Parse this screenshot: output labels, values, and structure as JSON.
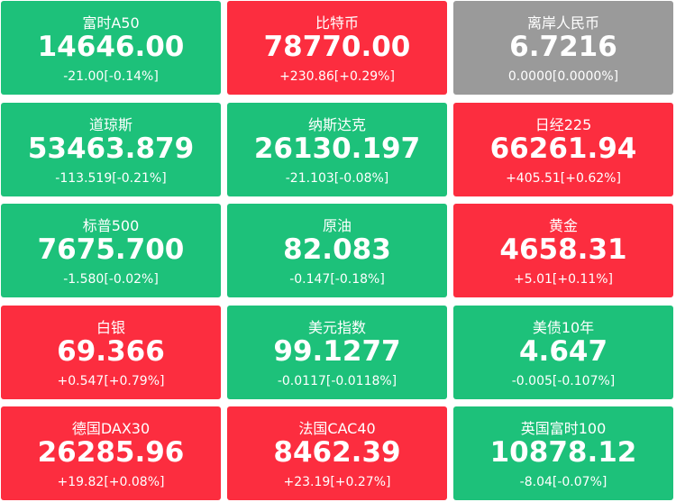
{
  "tiles": [
    {
      "name": "富时A50",
      "value": "14646.00",
      "change": "-21.00[-0.14%]",
      "color": "#1dc17a"
    },
    {
      "name": "比特币",
      "value": "78770.00",
      "change": "+230.86[+0.29%]",
      "color": "#fc2d3f"
    },
    {
      "name": "离岸人民币",
      "value": "6.7216",
      "change": "0.0000[0.0000%]",
      "color": "#9a9a9a"
    },
    {
      "name": "道琼斯",
      "value": "53463.879",
      "change": "-113.519[-0.21%]",
      "color": "#1dc17a"
    },
    {
      "name": "纳斯达克",
      "value": "26130.197",
      "change": "-21.103[-0.08%]",
      "color": "#1dc17a"
    },
    {
      "name": "日经225",
      "value": "66261.94",
      "change": "+405.51[+0.62%]",
      "color": "#fc2d3f"
    },
    {
      "name": "标普500",
      "value": "7675.700",
      "change": "-1.580[-0.02%]",
      "color": "#1dc17a"
    },
    {
      "name": "原油",
      "value": "82.083",
      "change": "-0.147[-0.18%]",
      "color": "#1dc17a"
    },
    {
      "name": "黄金",
      "value": "4658.31",
      "change": "+5.01[+0.11%]",
      "color": "#fc2d3f"
    },
    {
      "name": "白银",
      "value": "69.366",
      "change": "+0.547[+0.79%]",
      "color": "#fc2d3f"
    },
    {
      "name": "美元指数",
      "value": "99.1277",
      "change": "-0.0117[-0.0118%]",
      "color": "#1dc17a"
    },
    {
      "name": "美债10年",
      "value": "4.647",
      "change": "-0.005[-0.107%]",
      "color": "#1dc17a"
    },
    {
      "name": "德国DAX30",
      "value": "26285.96",
      "change": "+19.82[+0.08%]",
      "color": "#fc2d3f"
    },
    {
      "name": "法国CAC40",
      "value": "8462.39",
      "change": "+23.19[+0.27%]",
      "color": "#fc2d3f"
    },
    {
      "name": "英国富时100",
      "value": "10878.12",
      "change": "-8.04[-0.07%]",
      "color": "#1dc17a"
    }
  ]
}
